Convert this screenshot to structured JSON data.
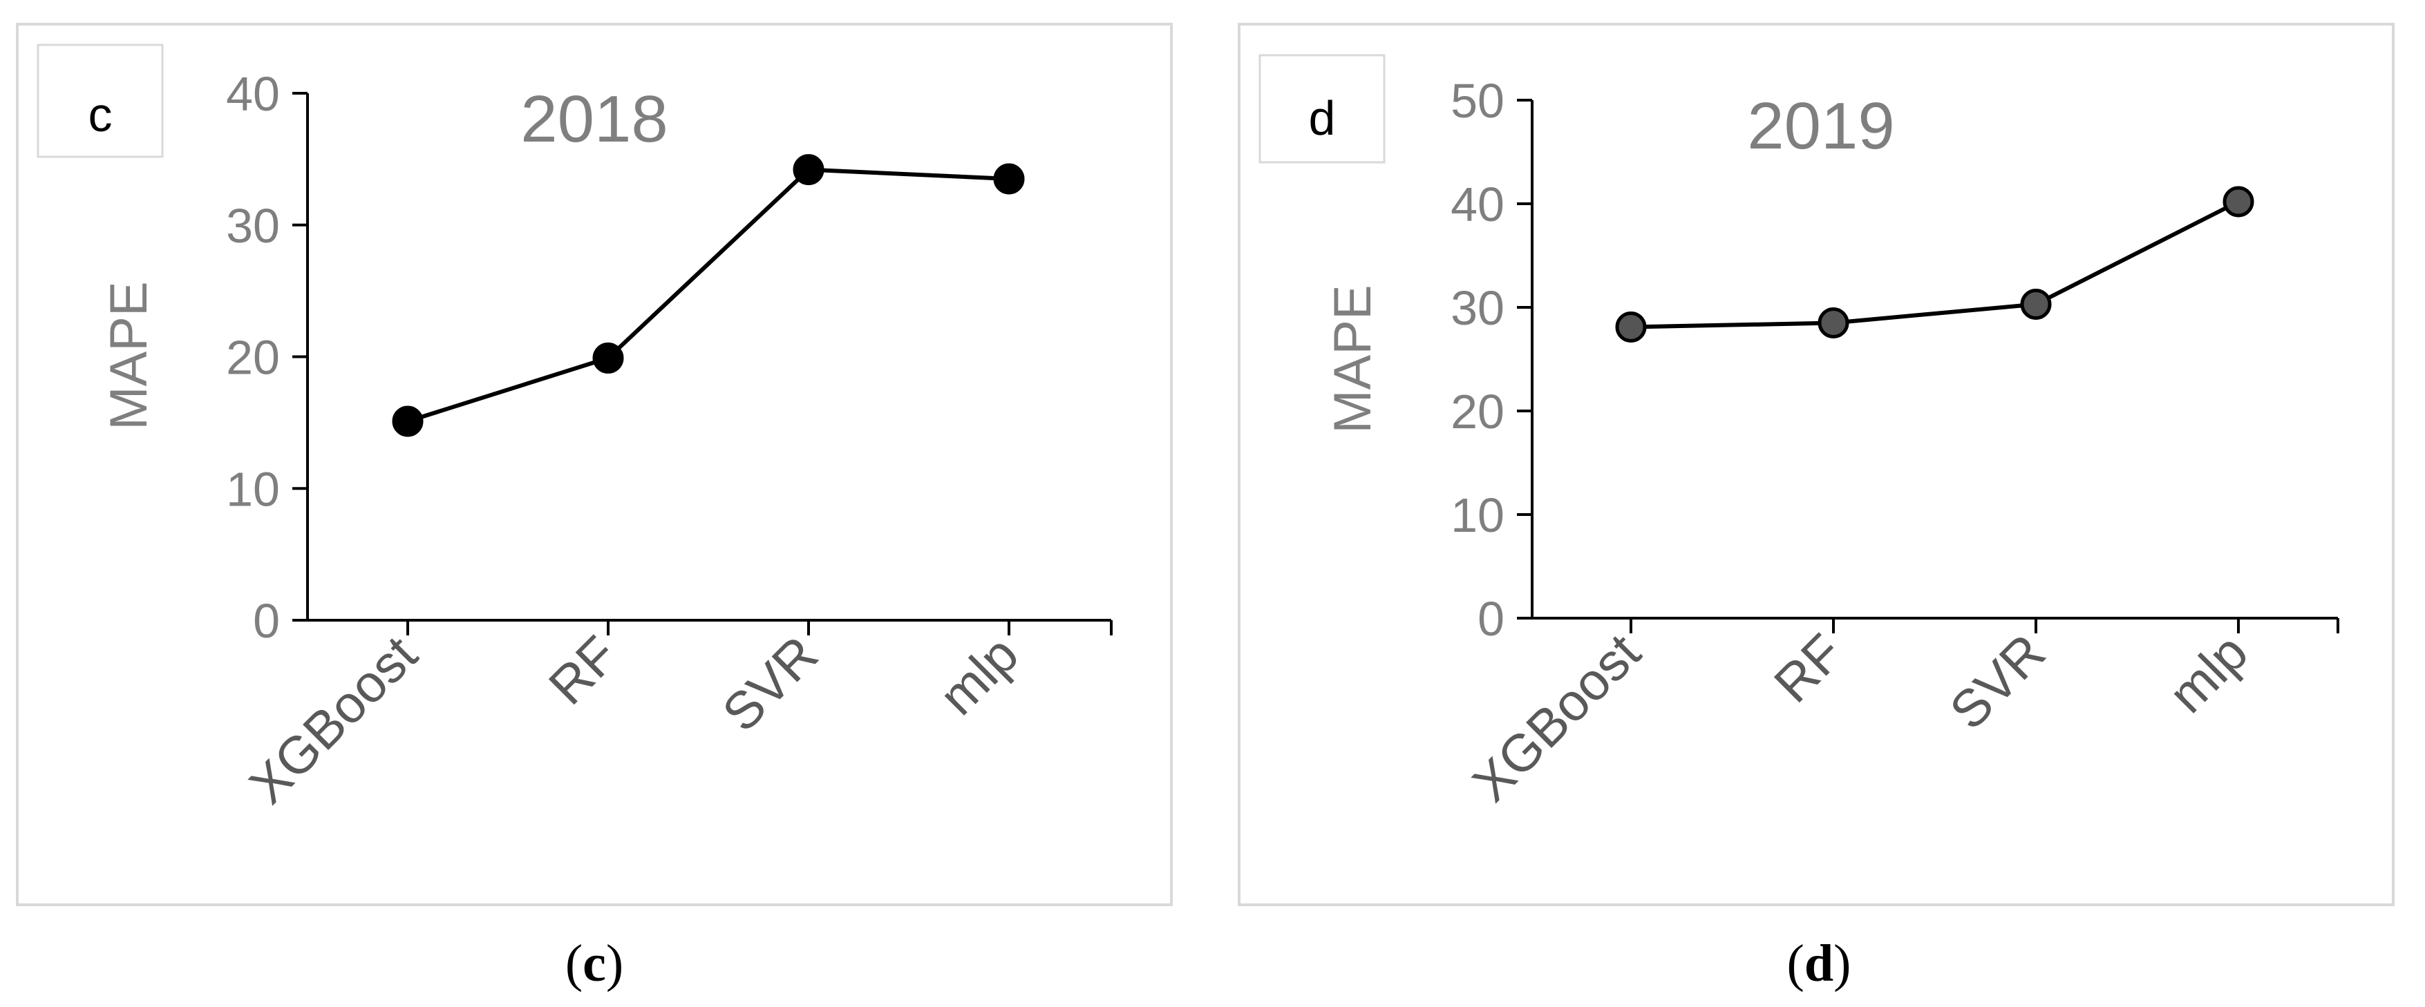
{
  "chart_data": [
    {
      "type": "line",
      "panel_tag": "c",
      "title": "2018",
      "ylabel": "MAPE",
      "xlabel": "",
      "categories": [
        "XGBoost",
        "RF",
        "SVR",
        "mlp"
      ],
      "values": [
        15.1,
        19.9,
        34.2,
        33.5
      ],
      "ylim": [
        0,
        40
      ],
      "yticks": [
        0,
        10,
        20,
        30,
        40
      ],
      "grid": false,
      "marker_color": "#000000",
      "line_color": "#000000",
      "caption_letter": "c",
      "caption_open": "(",
      "caption_close": ")"
    },
    {
      "type": "line",
      "panel_tag": "d",
      "title": "2019",
      "ylabel": "MAPE",
      "xlabel": "",
      "categories": [
        "XGBoost",
        "RF",
        "SVR",
        "mlp"
      ],
      "values": [
        28.1,
        28.5,
        30.3,
        40.2
      ],
      "ylim": [
        0,
        50
      ],
      "yticks": [
        0,
        10,
        20,
        30,
        40,
        50
      ],
      "grid": false,
      "marker_color": "#555555",
      "line_color": "#000000",
      "caption_letter": "d",
      "caption_open": "(",
      "caption_close": ")"
    }
  ]
}
